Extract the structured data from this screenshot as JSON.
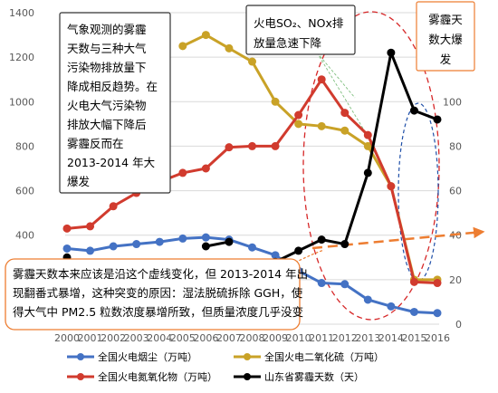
{
  "chart_data": {
    "type": "line",
    "x": [
      "2000",
      "2001",
      "2002",
      "2003",
      "2004",
      "2005",
      "2006",
      "2007",
      "2008",
      "2009",
      "2010",
      "2011",
      "2012",
      "2013",
      "2014",
      "2015",
      "2016"
    ],
    "left_axis": {
      "ticks": [
        "0",
        "200",
        "400",
        "600",
        "800",
        "1000",
        "1200",
        "1400"
      ],
      "ylim": [
        0,
        1400
      ]
    },
    "right_axis": {
      "ticks": [
        "0",
        "20",
        "40",
        "60",
        "80",
        "100",
        "120",
        "140"
      ],
      "ylim": [
        0,
        140
      ]
    },
    "series": [
      {
        "name": "全国火电烟尘（万吨）",
        "axis": "left",
        "color": "#4472C4",
        "values": [
          340,
          330,
          350,
          360,
          370,
          385,
          390,
          380,
          345,
          310,
          240,
          185,
          180,
          110,
          80,
          55,
          50
        ]
      },
      {
        "name": "全国火电二氧化硫（万吨）",
        "axis": "left",
        "color": "#C9A227",
        "values": [
          null,
          null,
          null,
          null,
          null,
          1250,
          1300,
          1240,
          1180,
          1000,
          900,
          890,
          870,
          800,
          620,
          200,
          200
        ]
      },
      {
        "name": "全国火电氮氧化物（万吨）",
        "axis": "left",
        "color": "#D13B2E",
        "values": [
          430,
          440,
          530,
          590,
          640,
          680,
          700,
          795,
          800,
          800,
          940,
          1100,
          950,
          850,
          620,
          190,
          185
        ]
      },
      {
        "name": "山东省雾霾天数（天）",
        "axis": "right",
        "color": "#000000",
        "values": [
          30,
          null,
          null,
          null,
          null,
          null,
          35,
          37,
          null,
          28,
          33,
          38,
          36,
          68,
          122,
          96,
          92
        ]
      }
    ],
    "annotations": {
      "box1": [
        "气象观测的雾霾",
        "天数与三种大气",
        "污染物排放量下",
        "降成相反趋势。在",
        "火电大气污染物",
        "排放大幅下降后",
        "雾霾反而在",
        "2013-2014 年大",
        "爆发"
      ],
      "box2": [
        "火电SO₂、NOx排",
        "放量急速下降"
      ],
      "box3": [
        "雾霾天",
        "数大爆",
        "发"
      ],
      "callout": [
        "雾霾天数本来应该是沿这个虚线变化，但 2013-2014 年出",
        "现翻番式暴增，这种突变的原因：湿法脱硫拆除 GGH，使",
        "得大气中 PM2.5 粒数浓度暴增所致，但质量浓度几乎没变"
      ]
    }
  }
}
